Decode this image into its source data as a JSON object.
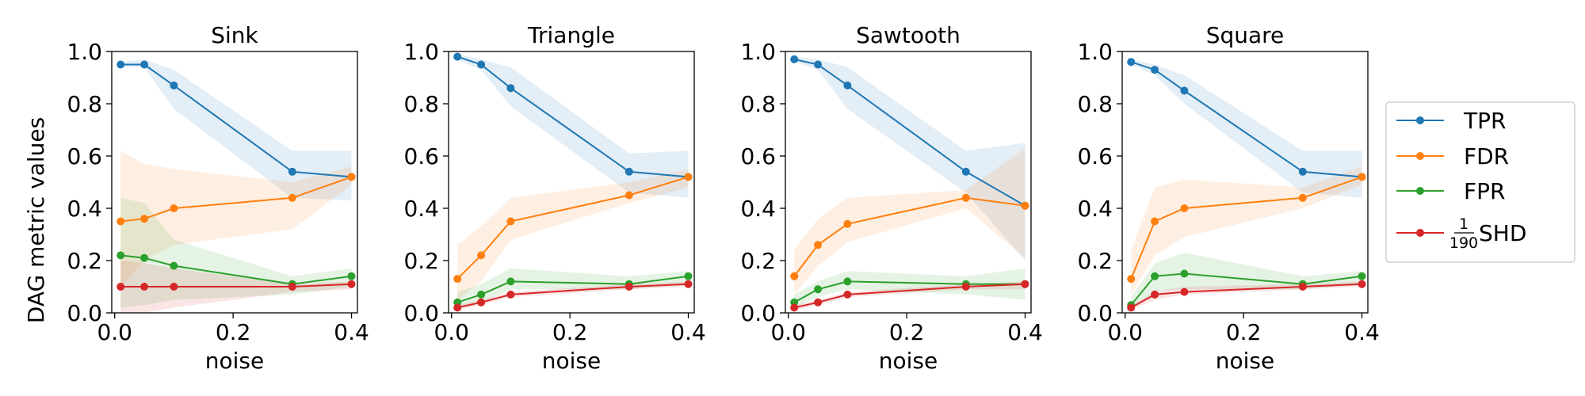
{
  "chart_data": [
    {
      "type": "line",
      "title": "Sink",
      "xlabel": "noise",
      "ylabel": "DAG metric values",
      "xlim": [
        -0.005,
        0.41
      ],
      "ylim": [
        0.0,
        1.0
      ],
      "xticks": [
        0.0,
        0.2,
        0.4
      ],
      "xtick_labels": [
        "0.0",
        "0.2",
        "0.4"
      ],
      "yticks": [
        0.0,
        0.2,
        0.4,
        0.6,
        0.8,
        1.0
      ],
      "ytick_labels": [
        "0.0",
        "0.2",
        "0.4",
        "0.6",
        "0.8",
        "1.0"
      ],
      "x": [
        0.01,
        0.05,
        0.1,
        0.3,
        0.4
      ],
      "series": [
        {
          "name": "TPR",
          "values": [
            0.95,
            0.95,
            0.87,
            0.54,
            0.52
          ],
          "lower": [
            0.94,
            0.94,
            0.78,
            0.44,
            0.43
          ],
          "upper": [
            0.96,
            0.97,
            0.93,
            0.62,
            0.62
          ]
        },
        {
          "name": "FDR",
          "values": [
            0.35,
            0.36,
            0.4,
            0.44,
            0.52
          ],
          "lower": [
            0.1,
            0.2,
            0.26,
            0.32,
            0.49
          ],
          "upper": [
            0.62,
            0.57,
            0.55,
            0.5,
            0.56
          ]
        },
        {
          "name": "FPR",
          "values": [
            0.22,
            0.21,
            0.18,
            0.11,
            0.14
          ],
          "lower": [
            0.02,
            0.03,
            0.05,
            0.07,
            0.1
          ],
          "upper": [
            0.44,
            0.42,
            0.28,
            0.14,
            0.17
          ]
        },
        {
          "name": "SHD/190",
          "values": [
            0.1,
            0.1,
            0.1,
            0.1,
            0.11
          ],
          "lower": [
            0.0,
            0.0,
            0.02,
            0.08,
            0.09
          ],
          "upper": [
            0.2,
            0.19,
            0.17,
            0.11,
            0.12
          ]
        }
      ]
    },
    {
      "type": "line",
      "title": "Triangle",
      "xlabel": "noise",
      "ylabel": "",
      "xlim": [
        -0.005,
        0.41
      ],
      "ylim": [
        0.0,
        1.0
      ],
      "xticks": [
        0.0,
        0.2,
        0.4
      ],
      "xtick_labels": [
        "0.0",
        "0.2",
        "0.4"
      ],
      "yticks": [
        0.0,
        0.2,
        0.4,
        0.6,
        0.8,
        1.0
      ],
      "ytick_labels": [
        "0.0",
        "0.2",
        "0.4",
        "0.6",
        "0.8",
        "1.0"
      ],
      "x": [
        0.01,
        0.05,
        0.1,
        0.3,
        0.4
      ],
      "series": [
        {
          "name": "TPR",
          "values": [
            0.98,
            0.95,
            0.86,
            0.54,
            0.52
          ],
          "lower": [
            0.97,
            0.93,
            0.79,
            0.46,
            0.44
          ],
          "upper": [
            0.99,
            0.97,
            0.94,
            0.61,
            0.62
          ]
        },
        {
          "name": "FDR",
          "values": [
            0.13,
            0.22,
            0.35,
            0.45,
            0.52
          ],
          "lower": [
            0.05,
            0.12,
            0.28,
            0.42,
            0.48
          ],
          "upper": [
            0.26,
            0.33,
            0.44,
            0.5,
            0.55
          ]
        },
        {
          "name": "FPR",
          "values": [
            0.04,
            0.07,
            0.12,
            0.11,
            0.14
          ],
          "lower": [
            0.02,
            0.04,
            0.09,
            0.09,
            0.11
          ],
          "upper": [
            0.08,
            0.11,
            0.17,
            0.14,
            0.16
          ]
        },
        {
          "name": "SHD/190",
          "values": [
            0.02,
            0.04,
            0.07,
            0.1,
            0.11
          ],
          "lower": [
            0.01,
            0.03,
            0.06,
            0.09,
            0.1
          ],
          "upper": [
            0.03,
            0.05,
            0.08,
            0.11,
            0.12
          ]
        }
      ]
    },
    {
      "type": "line",
      "title": "Sawtooth",
      "xlabel": "noise",
      "ylabel": "",
      "xlim": [
        -0.005,
        0.41
      ],
      "ylim": [
        0.0,
        1.0
      ],
      "xticks": [
        0.0,
        0.2,
        0.4
      ],
      "xtick_labels": [
        "0.0",
        "0.2",
        "0.4"
      ],
      "yticks": [
        0.0,
        0.2,
        0.4,
        0.6,
        0.8,
        1.0
      ],
      "ytick_labels": [
        "0.0",
        "0.2",
        "0.4",
        "0.6",
        "0.8",
        "1.0"
      ],
      "x": [
        0.01,
        0.05,
        0.1,
        0.3,
        0.4
      ],
      "series": [
        {
          "name": "TPR",
          "values": [
            0.97,
            0.95,
            0.87,
            0.54,
            0.41
          ],
          "lower": [
            0.96,
            0.93,
            0.78,
            0.46,
            0.2
          ],
          "upper": [
            0.98,
            0.97,
            0.94,
            0.62,
            0.65
          ]
        },
        {
          "name": "FDR",
          "values": [
            0.14,
            0.26,
            0.34,
            0.44,
            0.41
          ],
          "lower": [
            0.07,
            0.18,
            0.27,
            0.4,
            0.21
          ],
          "upper": [
            0.24,
            0.36,
            0.44,
            0.47,
            0.63
          ]
        },
        {
          "name": "FPR",
          "values": [
            0.04,
            0.09,
            0.12,
            0.11,
            0.11
          ],
          "lower": [
            0.02,
            0.06,
            0.09,
            0.07,
            0.05
          ],
          "upper": [
            0.07,
            0.12,
            0.16,
            0.14,
            0.17
          ]
        },
        {
          "name": "SHD/190",
          "values": [
            0.02,
            0.04,
            0.07,
            0.1,
            0.11
          ],
          "lower": [
            0.01,
            0.03,
            0.06,
            0.09,
            0.09
          ],
          "upper": [
            0.03,
            0.05,
            0.08,
            0.11,
            0.12
          ]
        }
      ]
    },
    {
      "type": "line",
      "title": "Square",
      "xlabel": "noise",
      "ylabel": "",
      "xlim": [
        -0.005,
        0.41
      ],
      "ylim": [
        0.0,
        1.0
      ],
      "xticks": [
        0.0,
        0.2,
        0.4
      ],
      "xtick_labels": [
        "0.0",
        "0.2",
        "0.4"
      ],
      "yticks": [
        0.0,
        0.2,
        0.4,
        0.6,
        0.8,
        1.0
      ],
      "ytick_labels": [
        "0.0",
        "0.2",
        "0.4",
        "0.6",
        "0.8",
        "1.0"
      ],
      "x": [
        0.01,
        0.05,
        0.1,
        0.3,
        0.4
      ],
      "series": [
        {
          "name": "TPR",
          "values": [
            0.96,
            0.93,
            0.85,
            0.54,
            0.52
          ],
          "lower": [
            0.95,
            0.91,
            0.8,
            0.46,
            0.44
          ],
          "upper": [
            0.97,
            0.95,
            0.91,
            0.62,
            0.62
          ]
        },
        {
          "name": "FDR",
          "values": [
            0.13,
            0.35,
            0.4,
            0.44,
            0.52
          ],
          "lower": [
            0.07,
            0.22,
            0.29,
            0.4,
            0.49
          ],
          "upper": [
            0.24,
            0.48,
            0.51,
            0.48,
            0.56
          ]
        },
        {
          "name": "FPR",
          "values": [
            0.03,
            0.14,
            0.15,
            0.11,
            0.14
          ],
          "lower": [
            0.01,
            0.08,
            0.09,
            0.09,
            0.11
          ],
          "upper": [
            0.06,
            0.19,
            0.23,
            0.14,
            0.16
          ]
        },
        {
          "name": "SHD/190",
          "values": [
            0.02,
            0.07,
            0.08,
            0.1,
            0.11
          ],
          "lower": [
            0.01,
            0.05,
            0.07,
            0.09,
            0.1
          ],
          "upper": [
            0.03,
            0.08,
            0.1,
            0.11,
            0.12
          ]
        }
      ]
    }
  ],
  "legend": {
    "placement": "right",
    "entries": [
      {
        "key": "TPR",
        "label": "TPR"
      },
      {
        "key": "FDR",
        "label": "FDR"
      },
      {
        "key": "FPR",
        "label": "FPR"
      },
      {
        "key": "SHD/190",
        "label": "SHD",
        "prefix_numerator": "1",
        "prefix_denominator": "190"
      }
    ]
  },
  "colors": {
    "TPR": "#1f77b4",
    "FDR": "#ff7f0e",
    "FPR": "#2ca02c",
    "SHD/190": "#d62728"
  }
}
